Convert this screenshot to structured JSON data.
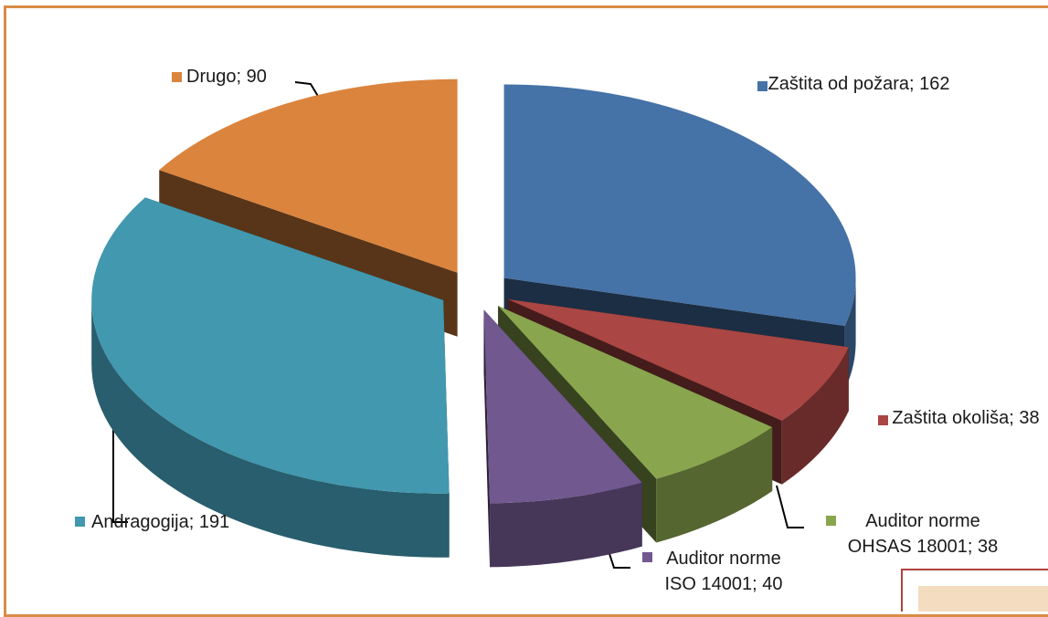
{
  "chart_data": {
    "type": "pie3d",
    "values": [
      162,
      38,
      38,
      40,
      191,
      90
    ],
    "value_labels": [
      "Zaštita od požara; 162",
      "Zaštita okoliša; 38",
      "Auditor norme OHSAS 18001; 38",
      "Auditor norme ISO 14001; 40",
      "Andragogija; 191",
      "Drugo; 90"
    ],
    "colors": [
      "#4572a7",
      "#aa4643",
      "#89a54e",
      "#71588f",
      "#4198af",
      "#db843d"
    ]
  }
}
